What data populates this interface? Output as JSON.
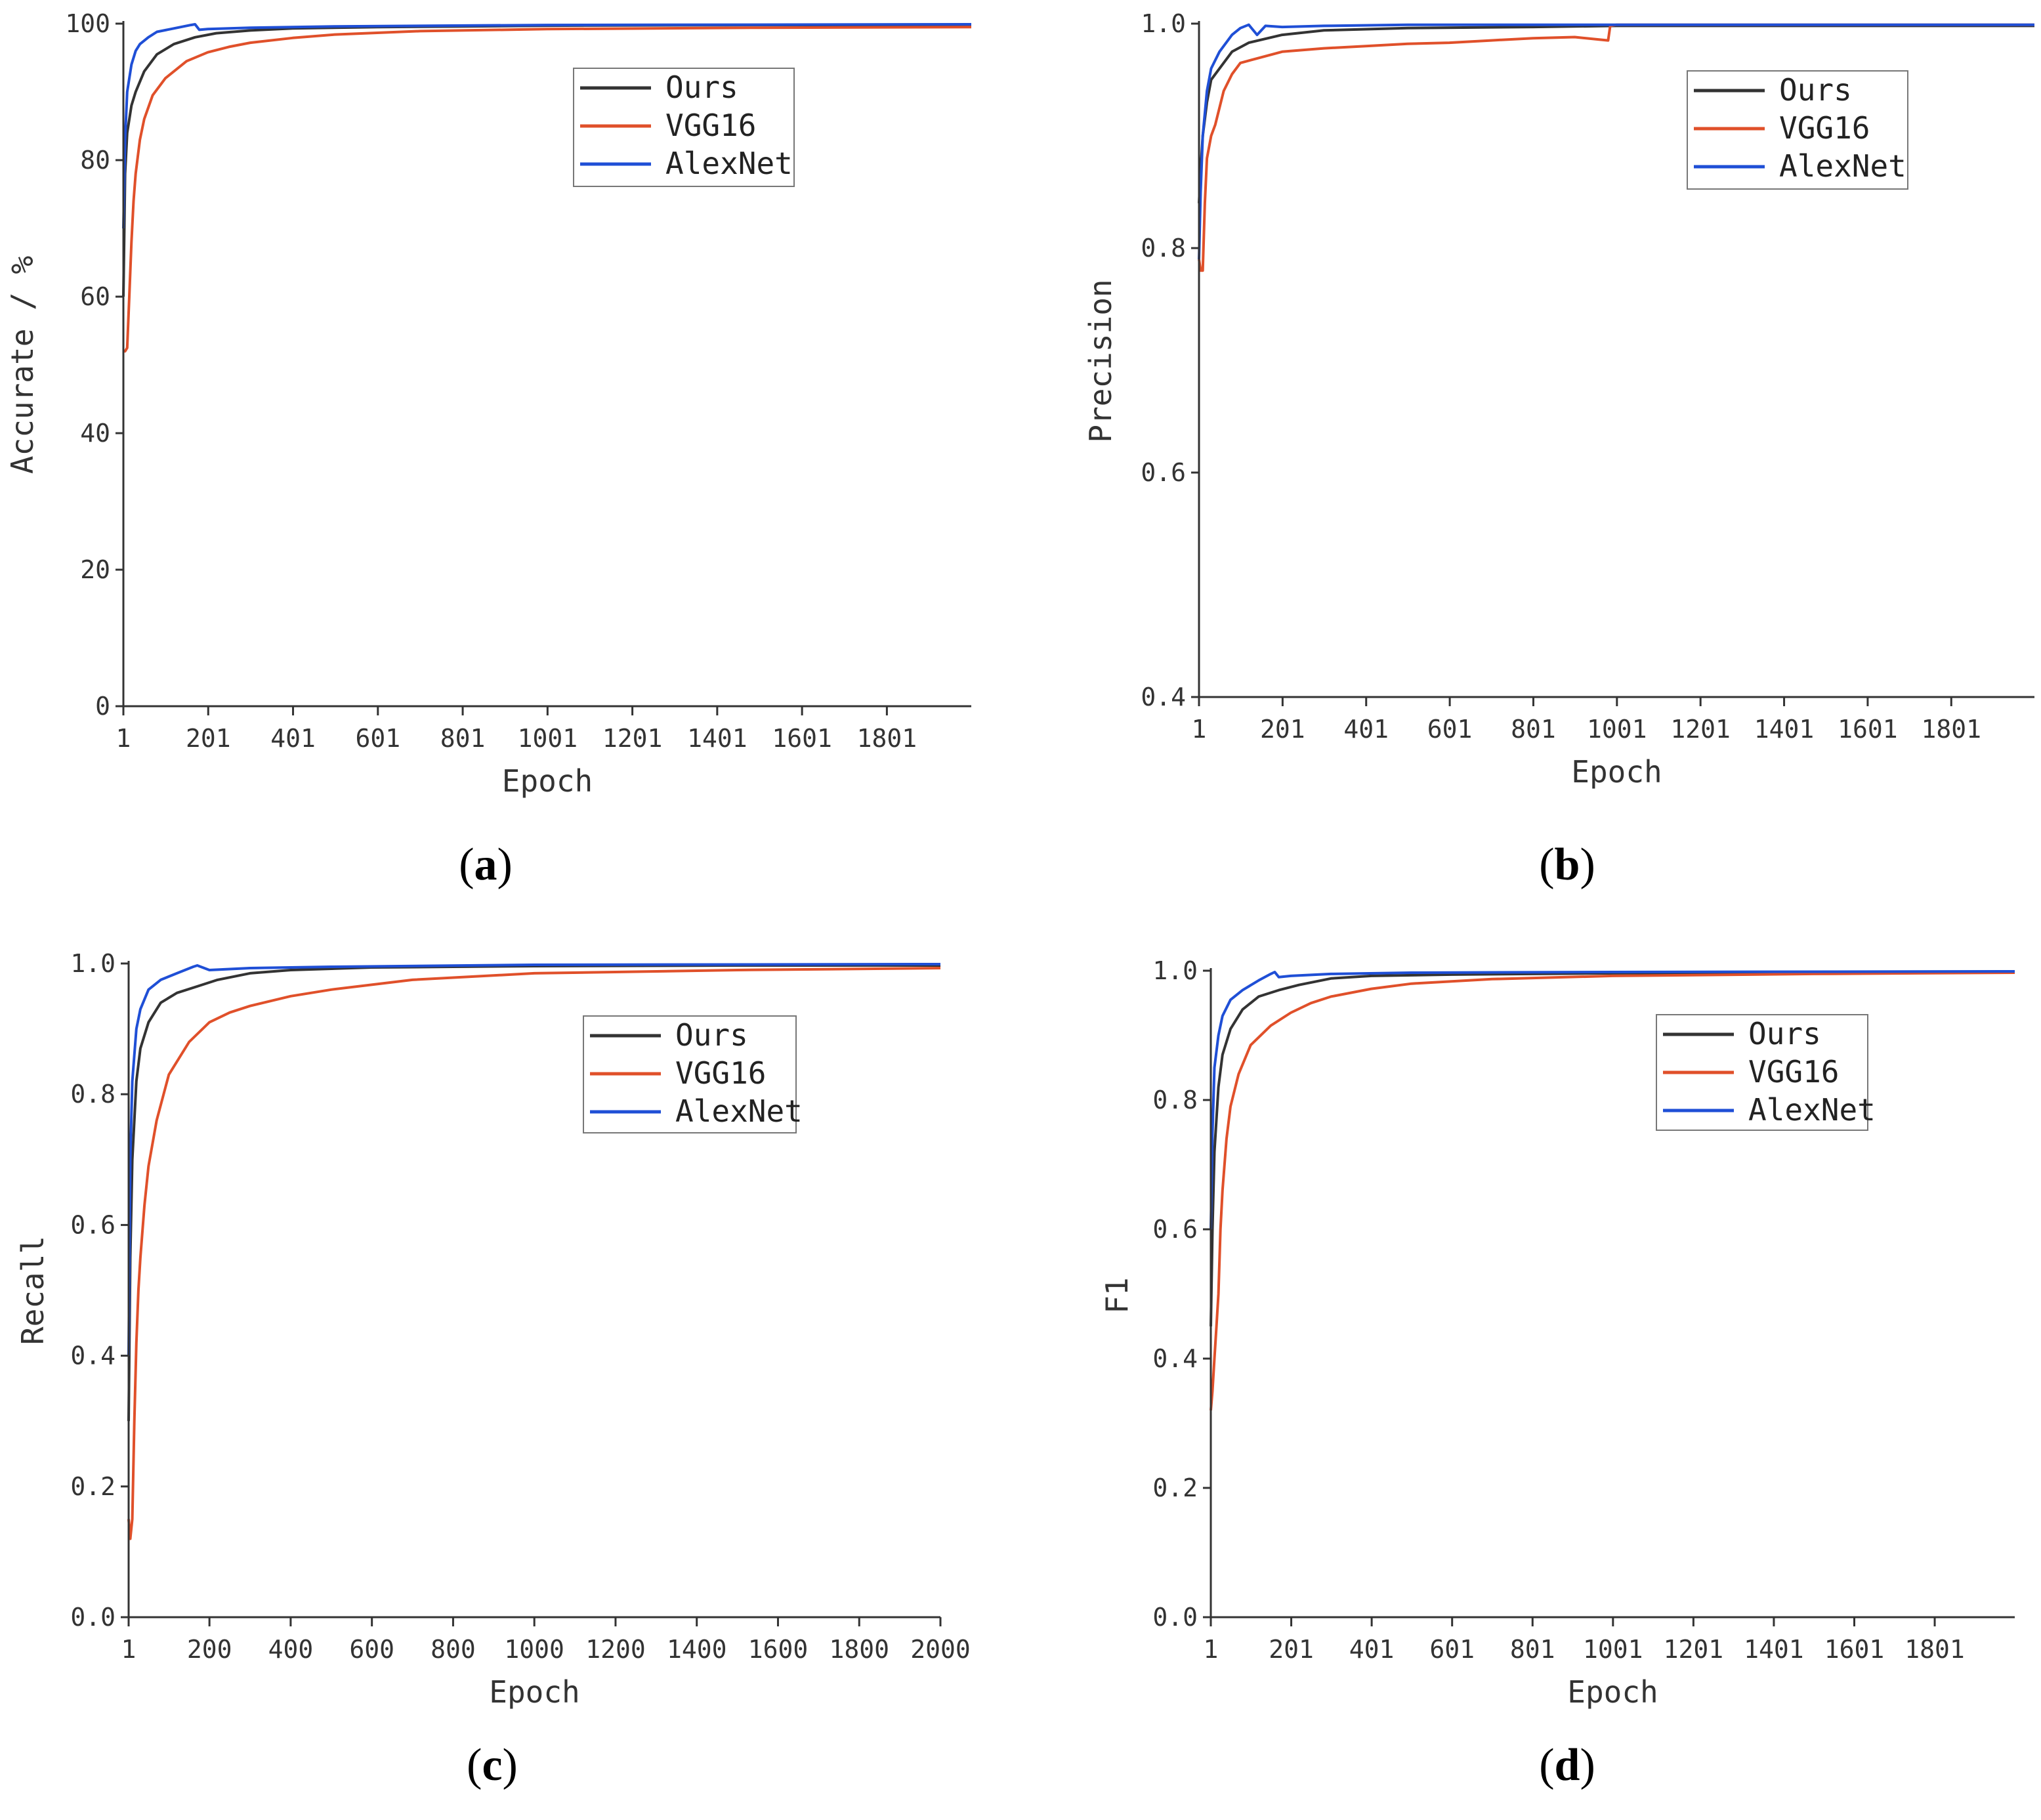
{
  "colors": {
    "Ours": "#333333",
    "VGG16": "#e0502a",
    "AlexNet": "#1f4fd6",
    "axis": "#333333"
  },
  "chart_data": [
    {
      "id": "a",
      "panel_label": "a",
      "type": "line",
      "title": "",
      "xlabel": "Epoch",
      "ylabel": "Accurate / %",
      "xlim": [
        1,
        2000
      ],
      "ylim": [
        0,
        100
      ],
      "x_ticks": [
        1,
        201,
        401,
        601,
        801,
        1001,
        1201,
        1401,
        1601,
        1801
      ],
      "x_tick_labels": [
        "1",
        "201",
        "401",
        "601",
        "801",
        "1001",
        "1201",
        "1401",
        "1601",
        "1801"
      ],
      "y_ticks": [
        0,
        20,
        40,
        60,
        80,
        100
      ],
      "y_tick_labels": [
        "0",
        "20",
        "40",
        "60",
        "80",
        "100"
      ],
      "legend_position": "top-center",
      "series": [
        {
          "name": "Ours",
          "x": [
            1,
            5,
            10,
            20,
            30,
            50,
            80,
            120,
            170,
            220,
            300,
            400,
            600,
            800,
            1000,
            1500,
            2000
          ],
          "y": [
            60,
            78,
            84,
            88,
            90,
            93,
            95.5,
            97,
            98,
            98.6,
            99,
            99.3,
            99.5,
            99.6,
            99.7,
            99.8,
            99.8
          ]
        },
        {
          "name": "VGG16",
          "x": [
            1,
            5,
            10,
            15,
            20,
            25,
            30,
            40,
            50,
            70,
            100,
            150,
            200,
            250,
            300,
            400,
            500,
            700,
            1000,
            1500,
            2000
          ],
          "y": [
            52,
            52,
            52.5,
            60,
            68,
            74,
            78,
            83,
            86,
            89.5,
            92,
            94.5,
            95.8,
            96.6,
            97.2,
            97.9,
            98.4,
            98.9,
            99.2,
            99.4,
            99.5
          ]
        },
        {
          "name": "AlexNet",
          "x": [
            1,
            5,
            10,
            20,
            30,
            40,
            60,
            80,
            120,
            160,
            170,
            180,
            200,
            300,
            500,
            1000,
            2000
          ],
          "y": [
            70,
            83,
            90,
            94,
            96,
            97,
            98,
            98.8,
            99.3,
            99.8,
            99.9,
            99.1,
            99.2,
            99.4,
            99.6,
            99.8,
            99.9
          ]
        }
      ]
    },
    {
      "id": "b",
      "panel_label": "b",
      "type": "line",
      "title": "",
      "xlabel": "Epoch",
      "ylabel": "Precision",
      "xlim": [
        1,
        2000
      ],
      "ylim": [
        0.4,
        1.0
      ],
      "x_ticks": [
        1,
        201,
        401,
        601,
        801,
        1001,
        1201,
        1401,
        1601,
        1801
      ],
      "x_tick_labels": [
        "1",
        "201",
        "401",
        "601",
        "801",
        "1001",
        "1201",
        "1401",
        "1601",
        "1801"
      ],
      "y_ticks": [
        0.4,
        0.6,
        0.8,
        1.0
      ],
      "y_tick_labels": [
        "0.4",
        "0.6",
        "0.8",
        "1.0"
      ],
      "legend_position": "top-right",
      "series": [
        {
          "name": "Ours",
          "x": [
            1,
            5,
            10,
            20,
            30,
            50,
            80,
            120,
            200,
            300,
            500,
            800,
            1000,
            1500,
            2000
          ],
          "y": [
            0.84,
            0.87,
            0.9,
            0.93,
            0.95,
            0.96,
            0.975,
            0.983,
            0.99,
            0.994,
            0.996,
            0.997,
            0.998,
            0.998,
            0.998
          ]
        },
        {
          "name": "VGG16",
          "x": [
            1,
            5,
            10,
            15,
            20,
            30,
            40,
            60,
            80,
            100,
            150,
            200,
            300,
            400,
            500,
            600,
            700,
            800,
            900,
            980,
            985,
            1000,
            1500,
            2000
          ],
          "y": [
            0.79,
            0.78,
            0.78,
            0.84,
            0.88,
            0.9,
            0.91,
            0.94,
            0.955,
            0.965,
            0.97,
            0.975,
            0.978,
            0.98,
            0.982,
            0.983,
            0.985,
            0.987,
            0.988,
            0.985,
            0.998,
            0.999,
            0.999,
            0.999
          ]
        },
        {
          "name": "AlexNet",
          "x": [
            1,
            5,
            10,
            20,
            30,
            50,
            80,
            100,
            120,
            140,
            160,
            200,
            300,
            500,
            1000,
            2000
          ],
          "y": [
            0.79,
            0.85,
            0.9,
            0.94,
            0.96,
            0.975,
            0.99,
            0.996,
            0.999,
            0.99,
            0.998,
            0.997,
            0.998,
            0.999,
            0.999,
            0.999
          ]
        }
      ]
    },
    {
      "id": "c",
      "panel_label": "c",
      "type": "line",
      "title": "",
      "xlabel": "Epoch",
      "ylabel": "Recall",
      "xlim": [
        1,
        2000
      ],
      "ylim": [
        0.0,
        1.0
      ],
      "x_ticks": [
        1,
        200,
        400,
        600,
        800,
        1000,
        1200,
        1400,
        1600,
        1800,
        2000
      ],
      "x_tick_labels": [
        "1",
        "200",
        "400",
        "600",
        "800",
        "1000",
        "1200",
        "1400",
        "1600",
        "1800",
        "2000"
      ],
      "y_ticks": [
        0.0,
        0.2,
        0.4,
        0.6,
        0.8,
        1.0
      ],
      "y_tick_labels": [
        "0.0",
        "0.2",
        "0.4",
        "0.6",
        "0.8",
        "1.0"
      ],
      "legend_position": "top-center",
      "series": [
        {
          "name": "Ours",
          "x": [
            1,
            5,
            10,
            20,
            30,
            50,
            80,
            120,
            170,
            220,
            300,
            400,
            600,
            800,
            1000,
            1500,
            2000
          ],
          "y": [
            0.3,
            0.55,
            0.7,
            0.82,
            0.87,
            0.91,
            0.94,
            0.955,
            0.965,
            0.975,
            0.985,
            0.99,
            0.994,
            0.995,
            0.996,
            0.997,
            0.997
          ]
        },
        {
          "name": "VGG16",
          "x": [
            1,
            5,
            10,
            15,
            20,
            25,
            30,
            40,
            50,
            70,
            100,
            150,
            200,
            250,
            300,
            400,
            500,
            700,
            1000,
            1500,
            2000
          ],
          "y": [
            0.15,
            0.12,
            0.15,
            0.3,
            0.42,
            0.5,
            0.55,
            0.63,
            0.69,
            0.76,
            0.83,
            0.88,
            0.91,
            0.925,
            0.935,
            0.95,
            0.96,
            0.975,
            0.985,
            0.99,
            0.993
          ]
        },
        {
          "name": "AlexNet",
          "x": [
            1,
            5,
            10,
            20,
            30,
            50,
            80,
            120,
            160,
            170,
            200,
            300,
            500,
            1000,
            2000
          ],
          "y": [
            0.4,
            0.7,
            0.82,
            0.9,
            0.93,
            0.96,
            0.975,
            0.985,
            0.995,
            0.997,
            0.99,
            0.993,
            0.995,
            0.998,
            0.999
          ]
        }
      ]
    },
    {
      "id": "d",
      "panel_label": "d",
      "type": "line",
      "title": "",
      "xlabel": "Epoch",
      "ylabel": "F1",
      "xlim": [
        1,
        2000
      ],
      "ylim": [
        0.0,
        1.0
      ],
      "x_ticks": [
        1,
        201,
        401,
        601,
        801,
        1001,
        1201,
        1401,
        1601,
        1801
      ],
      "x_tick_labels": [
        "1",
        "201",
        "401",
        "601",
        "801",
        "1001",
        "1201",
        "1401",
        "1601",
        "1801"
      ],
      "y_ticks": [
        0.0,
        0.2,
        0.4,
        0.6,
        0.8,
        1.0
      ],
      "y_tick_labels": [
        "0.0",
        "0.2",
        "0.4",
        "0.6",
        "0.8",
        "1.0"
      ],
      "legend_position": "top-right",
      "series": [
        {
          "name": "Ours",
          "x": [
            1,
            5,
            10,
            20,
            30,
            50,
            80,
            120,
            170,
            220,
            300,
            400,
            600,
            800,
            1000,
            1500,
            2000
          ],
          "y": [
            0.45,
            0.6,
            0.72,
            0.82,
            0.87,
            0.91,
            0.94,
            0.96,
            0.97,
            0.978,
            0.988,
            0.992,
            0.994,
            0.995,
            0.996,
            0.997,
            0.997
          ]
        },
        {
          "name": "VGG16",
          "x": [
            1,
            5,
            10,
            15,
            20,
            25,
            30,
            40,
            50,
            70,
            100,
            150,
            200,
            250,
            300,
            400,
            500,
            700,
            1000,
            1500,
            2000
          ],
          "y": [
            0.32,
            0.35,
            0.4,
            0.45,
            0.5,
            0.6,
            0.66,
            0.74,
            0.79,
            0.84,
            0.885,
            0.915,
            0.935,
            0.95,
            0.96,
            0.972,
            0.98,
            0.987,
            0.992,
            0.995,
            0.997
          ]
        },
        {
          "name": "AlexNet",
          "x": [
            1,
            5,
            10,
            20,
            30,
            50,
            80,
            120,
            150,
            160,
            170,
            200,
            300,
            500,
            1000,
            2000
          ],
          "y": [
            0.6,
            0.75,
            0.85,
            0.9,
            0.93,
            0.955,
            0.97,
            0.985,
            0.995,
            0.998,
            0.99,
            0.992,
            0.995,
            0.997,
            0.998,
            0.999
          ]
        }
      ]
    }
  ]
}
